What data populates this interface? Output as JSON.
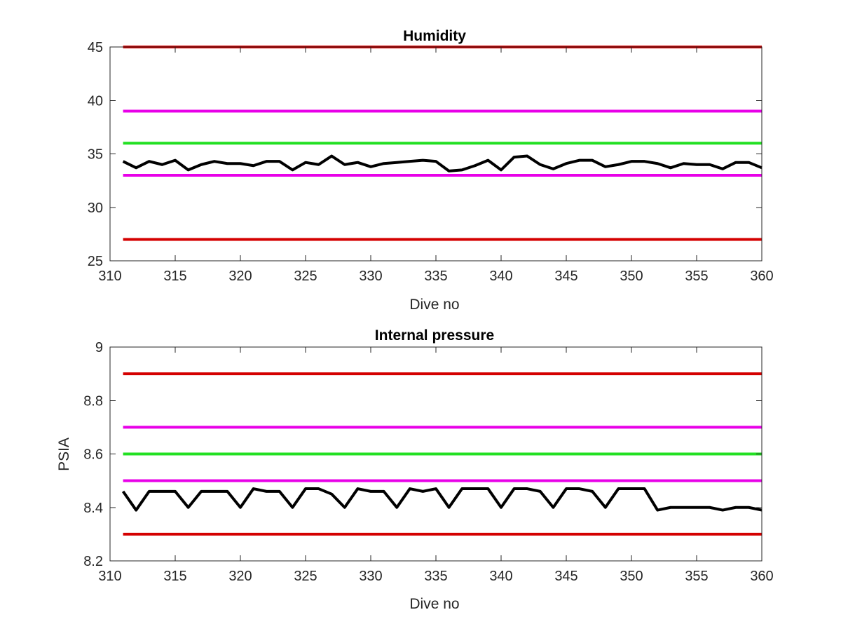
{
  "chart_data": [
    {
      "type": "line",
      "title": "Humidity",
      "xlabel": "Dive no",
      "ylabel": "",
      "xlim": [
        310,
        360
      ],
      "ylim": [
        25,
        45
      ],
      "xticks": [
        310,
        315,
        320,
        325,
        330,
        335,
        340,
        345,
        350,
        355,
        360
      ],
      "yticks": [
        25,
        30,
        35,
        40,
        45
      ],
      "grid": false,
      "series": [
        {
          "color": "#d40000",
          "x": [
            311,
            360
          ],
          "y": [
            45,
            45
          ]
        },
        {
          "color": "#e800e8",
          "x": [
            311,
            360
          ],
          "y": [
            39,
            39
          ]
        },
        {
          "color": "#22e022",
          "x": [
            311,
            360
          ],
          "y": [
            36,
            36
          ]
        },
        {
          "color": "#e800e8",
          "x": [
            311,
            360
          ],
          "y": [
            33,
            33
          ]
        },
        {
          "color": "#d40000",
          "x": [
            311,
            360
          ],
          "y": [
            27,
            27
          ]
        },
        {
          "color": "#000000",
          "x": [
            311,
            312,
            313,
            314,
            315,
            316,
            317,
            318,
            319,
            320,
            321,
            322,
            323,
            324,
            325,
            326,
            327,
            328,
            329,
            330,
            331,
            332,
            333,
            334,
            335,
            336,
            337,
            338,
            339,
            340,
            341,
            342,
            343,
            344,
            345,
            346,
            347,
            348,
            349,
            350,
            351,
            352,
            353,
            354,
            355,
            356,
            357,
            358,
            359,
            360
          ],
          "y": [
            34.3,
            33.7,
            34.3,
            34.0,
            34.4,
            33.5,
            34.0,
            34.3,
            34.1,
            34.1,
            33.9,
            34.3,
            34.3,
            33.5,
            34.2,
            34.0,
            34.8,
            34.0,
            34.2,
            33.8,
            34.1,
            34.2,
            34.3,
            34.4,
            34.3,
            33.4,
            33.5,
            33.9,
            34.4,
            33.5,
            34.7,
            34.8,
            34.0,
            33.6,
            34.1,
            34.4,
            34.4,
            33.8,
            34.0,
            34.3,
            34.3,
            34.1,
            33.7,
            34.1,
            34.0,
            34.0,
            33.6,
            34.2,
            34.2,
            33.7
          ]
        }
      ]
    },
    {
      "type": "line",
      "title": "Internal pressure",
      "xlabel": "Dive no",
      "ylabel": "PSIA",
      "xlim": [
        310,
        360
      ],
      "ylim": [
        8.2,
        9.0
      ],
      "xticks": [
        310,
        315,
        320,
        325,
        330,
        335,
        340,
        345,
        350,
        355,
        360
      ],
      "yticks": [
        8.2,
        8.4,
        8.6,
        8.8,
        9.0
      ],
      "ytick_labels": [
        "8.2",
        "8.4",
        "8.6",
        "8.8",
        "9"
      ],
      "grid": false,
      "series": [
        {
          "color": "#d40000",
          "x": [
            311,
            360
          ],
          "y": [
            8.9,
            8.9
          ]
        },
        {
          "color": "#e800e8",
          "x": [
            311,
            360
          ],
          "y": [
            8.7,
            8.7
          ]
        },
        {
          "color": "#22e022",
          "x": [
            311,
            360
          ],
          "y": [
            8.6,
            8.6
          ]
        },
        {
          "color": "#e800e8",
          "x": [
            311,
            360
          ],
          "y": [
            8.5,
            8.5
          ]
        },
        {
          "color": "#d40000",
          "x": [
            311,
            360
          ],
          "y": [
            8.3,
            8.3
          ]
        },
        {
          "color": "#000000",
          "x": [
            311,
            312,
            313,
            314,
            315,
            316,
            317,
            318,
            319,
            320,
            321,
            322,
            323,
            324,
            325,
            326,
            327,
            328,
            329,
            330,
            331,
            332,
            333,
            334,
            335,
            336,
            337,
            338,
            339,
            340,
            341,
            342,
            343,
            344,
            345,
            346,
            347,
            348,
            349,
            350,
            351,
            352,
            353,
            354,
            355,
            356,
            357,
            358,
            359,
            360
          ],
          "y": [
            8.46,
            8.39,
            8.46,
            8.46,
            8.46,
            8.4,
            8.46,
            8.46,
            8.46,
            8.4,
            8.47,
            8.46,
            8.46,
            8.4,
            8.47,
            8.47,
            8.45,
            8.4,
            8.47,
            8.46,
            8.46,
            8.4,
            8.47,
            8.46,
            8.47,
            8.4,
            8.47,
            8.47,
            8.47,
            8.4,
            8.47,
            8.47,
            8.46,
            8.4,
            8.47,
            8.47,
            8.46,
            8.4,
            8.47,
            8.47,
            8.47,
            8.39,
            8.4,
            8.4,
            8.4,
            8.4,
            8.39,
            8.4,
            8.4,
            8.39
          ]
        }
      ]
    }
  ]
}
